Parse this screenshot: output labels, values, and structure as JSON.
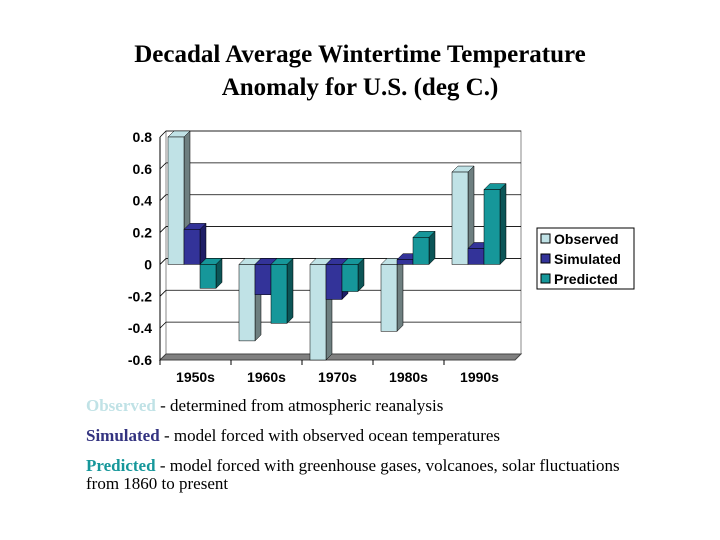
{
  "chart_data": {
    "type": "bar",
    "title_line1": "Decadal Average Wintertime Temperature",
    "title_line2": "Anomaly for U.S. (deg C.)",
    "categories": [
      "1950s",
      "1960s",
      "1970s",
      "1980s",
      "1990s"
    ],
    "series": [
      {
        "name": "Observed",
        "color": "#C0E2E6",
        "side": "#6E7F80",
        "values": [
          0.8,
          -0.48,
          -0.6,
          -0.42,
          0.58
        ]
      },
      {
        "name": "Simulated",
        "color": "#333399",
        "side": "#1E1E66",
        "values": [
          0.22,
          -0.19,
          -0.22,
          0.03,
          0.1
        ]
      },
      {
        "name": "Predicted",
        "color": "#16979A",
        "side": "#0C5557",
        "values": [
          -0.15,
          -0.37,
          -0.17,
          0.17,
          0.47
        ]
      }
    ],
    "ylim": [
      -0.6,
      0.8
    ],
    "yticks": [
      "0.8",
      "0.6",
      "0.4",
      "0.2",
      "0",
      "-0.2",
      "-0.4",
      "-0.6"
    ],
    "ytick_values": [
      0.8,
      0.6,
      0.4,
      0.2,
      0,
      -0.2,
      -0.4,
      -0.6
    ],
    "grid": true,
    "legend_position": "right"
  },
  "notes": [
    {
      "label": "Observed",
      "color": "#C0E2E6",
      "text": " - determined from atmospheric reanalysis"
    },
    {
      "label": "Simulated",
      "color": "#333380",
      "text": " - model forced with observed ocean temperatures"
    },
    {
      "label": "Predicted",
      "color": "#16979A",
      "text": " - model forced with greenhouse gases, volcanoes, solar fluctuations from 1860 to present"
    }
  ]
}
